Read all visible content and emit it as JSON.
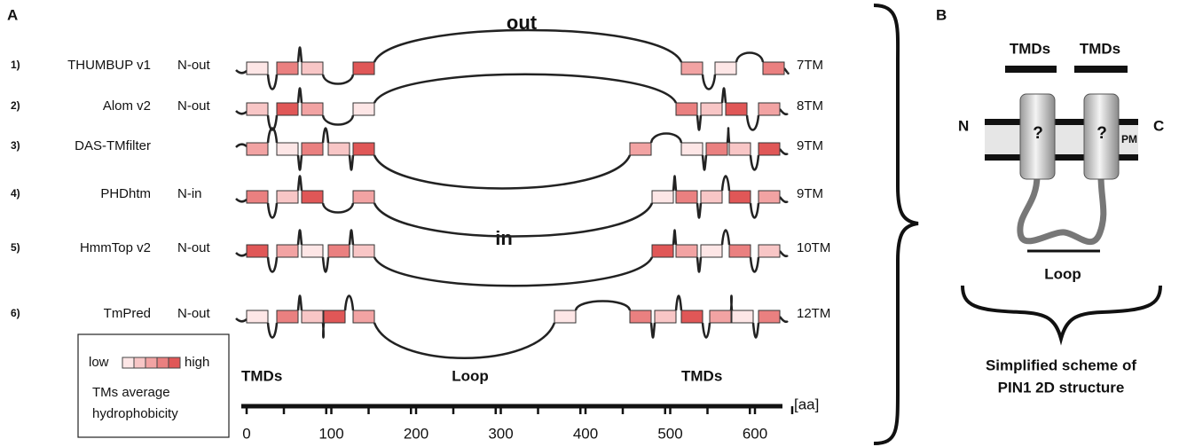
{
  "panel_a": {
    "label": "A",
    "out_label": "out",
    "in_label": "in",
    "rows": [
      {
        "number": "1)",
        "method": "THUMBUP v1",
        "orientation": "N-out",
        "tm_count": "7TM"
      },
      {
        "number": "2)",
        "method": "Alom v2",
        "orientation": "N-out",
        "tm_count": "8TM"
      },
      {
        "number": "3)",
        "method": "DAS-TMfilter",
        "tm_count": "9TM"
      },
      {
        "number": "4)",
        "method": "PHDhtm",
        "orientation": "N-in",
        "tm_count": "9TM"
      },
      {
        "number": "5)",
        "method": "HmmTop v2",
        "orientation": "N-out",
        "tm_count": "10TM"
      },
      {
        "number": "6)",
        "method": "TmPred",
        "orientation": "N-out",
        "tm_count": "12TM"
      }
    ],
    "legend": {
      "low": "low",
      "high": "high",
      "caption_lines": [
        "TMs average",
        "hydrophobicity"
      ]
    },
    "scale": {
      "left": "TMDs",
      "middle": "Loop",
      "right": "TMDs",
      "unit": "[aa]",
      "ticks": [
        0,
        100,
        200,
        300,
        400,
        500,
        600
      ]
    }
  },
  "panel_b": {
    "label": "B",
    "tmds_left": "TMDs",
    "tmds_right": "TMDs",
    "n_term": "N",
    "c_term": "C",
    "tm_left": "?",
    "tm_right": "?",
    "membrane": "PM",
    "loop": "Loop",
    "caption_lines": [
      "Simplified scheme of",
      "PIN1 2D structure"
    ]
  }
}
